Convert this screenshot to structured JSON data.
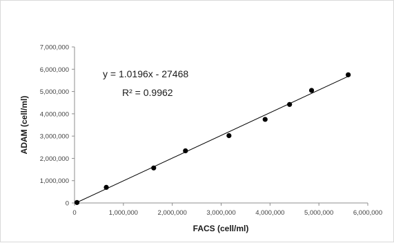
{
  "chart_data": {
    "type": "scatter",
    "xlabel": "FACS (cell/ml)",
    "ylabel": "ADAM  (cell/ml)",
    "xlim": [
      0,
      6000000
    ],
    "ylim": [
      0,
      7000000
    ],
    "x_ticks": [
      "0",
      "1,000,000",
      "2,000,000",
      "3,000,000",
      "4,000,000",
      "5,000,000",
      "6,000,000"
    ],
    "y_ticks": [
      "0",
      "1,000,000",
      "2,000,000",
      "3,000,000",
      "4,000,000",
      "5,000,000",
      "6,000,000",
      "7,000,000"
    ],
    "x_tick_values": [
      0,
      1000000,
      2000000,
      3000000,
      4000000,
      5000000,
      6000000
    ],
    "y_tick_values": [
      0,
      1000000,
      2000000,
      3000000,
      4000000,
      5000000,
      6000000,
      7000000
    ],
    "series": [
      {
        "points": [
          {
            "x": 50000,
            "y": 20000
          },
          {
            "x": 650000,
            "y": 700000
          },
          {
            "x": 1620000,
            "y": 1570000
          },
          {
            "x": 2270000,
            "y": 2340000
          },
          {
            "x": 3160000,
            "y": 3020000
          },
          {
            "x": 3900000,
            "y": 3750000
          },
          {
            "x": 4400000,
            "y": 4420000
          },
          {
            "x": 4850000,
            "y": 5050000
          },
          {
            "x": 5600000,
            "y": 5750000
          }
        ],
        "marker_color": "#000000"
      }
    ],
    "trendline": {
      "type": "linear",
      "slope": 1.0196,
      "intercept": -27468,
      "x_range": [
        50000,
        5600000
      ],
      "equation_label": "y = 1.0196x - 27468",
      "r2_label": "R² = 0.9962",
      "color": "#000000"
    },
    "grid": false,
    "legend": "none"
  }
}
